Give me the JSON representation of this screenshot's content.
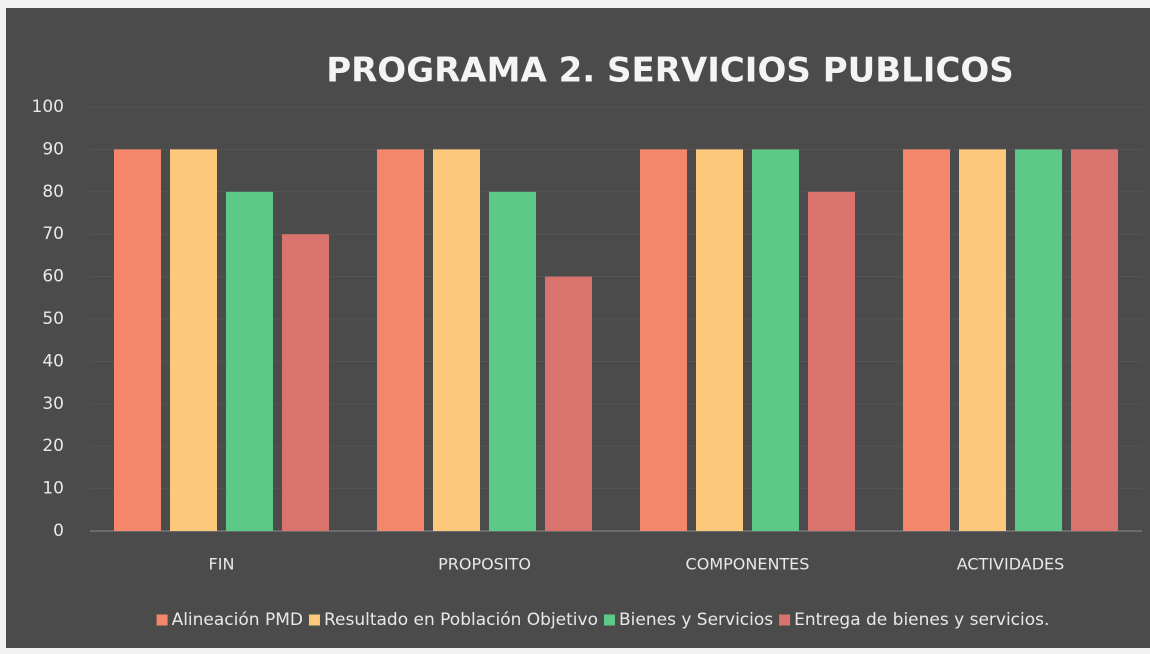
{
  "chart_data": {
    "type": "bar",
    "title": "PROGRAMA 2. SERVICIOS PUBLICOS",
    "categories": [
      "FIN",
      "PROPOSITO",
      "COMPONENTES",
      "ACTIVIDADES"
    ],
    "series": [
      {
        "name": "Alineación PMD",
        "color": "#f4866c",
        "values": [
          90,
          90,
          90,
          90
        ]
      },
      {
        "name": "Resultado en Población Objetivo",
        "color": "#fcc87c",
        "values": [
          90,
          90,
          90,
          90
        ]
      },
      {
        "name": "Bienes y Servicios",
        "color": "#5cc986",
        "values": [
          80,
          80,
          90,
          90
        ]
      },
      {
        "name": "Entrega de bienes y servicios.",
        "color": "#d8736e",
        "values": [
          70,
          60,
          80,
          90
        ]
      }
    ],
    "ylim": [
      0,
      100
    ],
    "yticks": [
      0,
      10,
      20,
      30,
      40,
      50,
      60,
      70,
      80,
      90,
      100
    ],
    "legend": "bottom"
  }
}
